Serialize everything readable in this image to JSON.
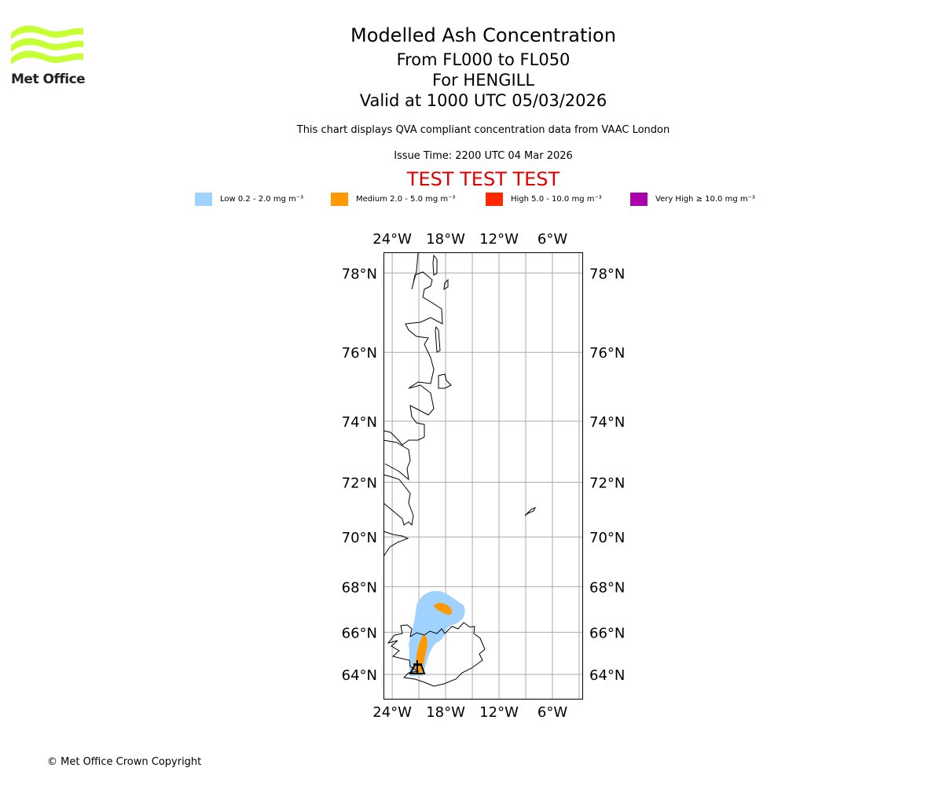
{
  "logo": {
    "text": "Met Office",
    "color": "#c6ff33"
  },
  "title": {
    "line1": "Modelled Ash Concentration",
    "line2": "From FL000 to FL050",
    "line3": "For HENGILL",
    "line4": "Valid at 1000 UTC 05/03/2026"
  },
  "subtitle": "This chart displays QVA compliant concentration data from VAAC London",
  "issue_time": "Issue Time: 2200 UTC 04 Mar 2026",
  "test_banner": "TEST TEST TEST",
  "legend": [
    {
      "label": "Low 0.2 - 2.0 mg m⁻³",
      "color": "#a0d2ff"
    },
    {
      "label": "Medium 2.0 - 5.0 mg m⁻³",
      "color": "#ff9900"
    },
    {
      "label": "High 5.0 - 10.0 mg m⁻³",
      "color": "#ff2800"
    },
    {
      "label": "Very High ≥ 10.0 mg m⁻³",
      "color": "#aa00aa"
    }
  ],
  "map": {
    "lon_ticks": [
      {
        "value": -24,
        "label": "24°W"
      },
      {
        "value": -18,
        "label": "18°W"
      },
      {
        "value": -12,
        "label": "12°W"
      },
      {
        "value": -6,
        "label": "6°W"
      }
    ],
    "lat_ticks": [
      {
        "value": 78,
        "label": "78°N"
      },
      {
        "value": 76,
        "label": "76°N"
      },
      {
        "value": 74,
        "label": "74°N"
      },
      {
        "value": 72,
        "label": "72°N"
      },
      {
        "value": 70,
        "label": "70°N"
      },
      {
        "value": 68,
        "label": "68°N"
      },
      {
        "value": 66,
        "label": "66°N"
      },
      {
        "value": 64,
        "label": "64°N"
      }
    ],
    "grid_lons": [
      -24,
      -21,
      -18,
      -15,
      -12,
      -9,
      -6,
      -3
    ],
    "extent": {
      "lon": [
        -25,
        -2.6
      ],
      "lat": [
        63.1,
        78.6
      ]
    },
    "grid_color": "#aaaaaa"
  },
  "copyright": "© Met Office Crown Copyright"
}
